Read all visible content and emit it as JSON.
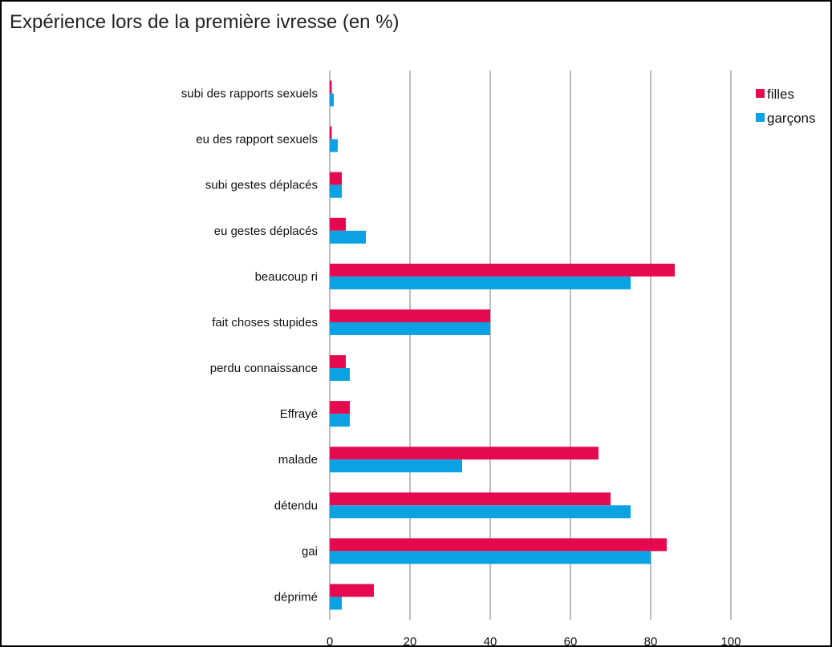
{
  "chart_data": {
    "type": "bar",
    "orientation": "horizontal",
    "title": "Expérience lors de la première ivresse (en %)",
    "xlabel": "",
    "ylabel": "",
    "xlim": [
      0,
      100
    ],
    "xticks": [
      0,
      20,
      40,
      60,
      80,
      100
    ],
    "grid": true,
    "legend_position": "top-right",
    "categories": [
      "subi des rapports sexuels",
      "eu des rapport sexuels",
      "subi gestes déplacés",
      "eu gestes déplacés",
      "beaucoup ri",
      "fait choses stupides",
      "perdu connaissance",
      "Effrayé",
      "malade",
      "détendu",
      "gai",
      "déprimé"
    ],
    "series": [
      {
        "name": "filles",
        "color": "#e5094f",
        "values": [
          0.5,
          0.5,
          3,
          4,
          86,
          40,
          4,
          5,
          67,
          70,
          84,
          11
        ]
      },
      {
        "name": "garçons",
        "color": "#0ba1e3",
        "values": [
          1,
          2,
          3,
          9,
          75,
          40,
          5,
          5,
          33,
          75,
          80,
          3
        ]
      }
    ]
  }
}
